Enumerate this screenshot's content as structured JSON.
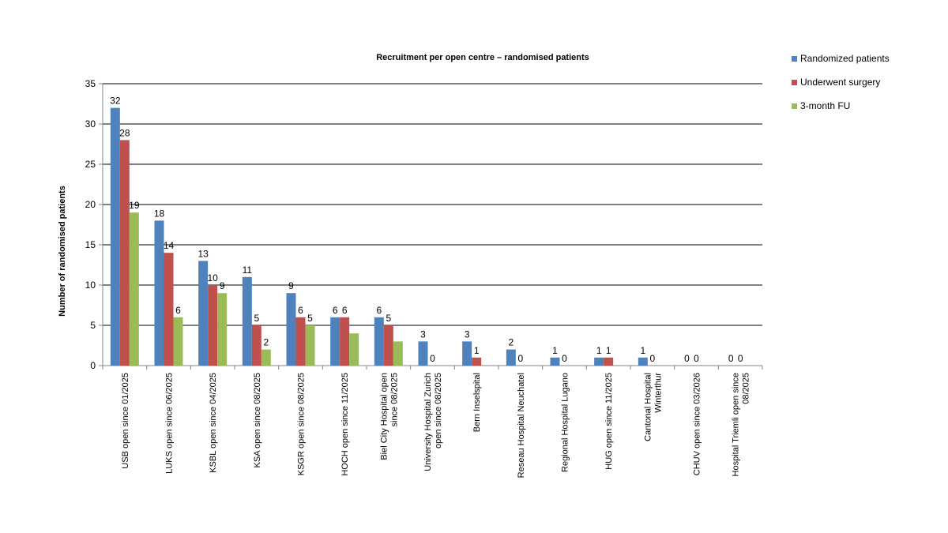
{
  "chart_data": {
    "type": "bar",
    "title": "Recruitment per open centre – randomised patients",
    "xlabel": "",
    "ylabel": "Number of randomised patients",
    "ylim": [
      0,
      35
    ],
    "yticks": [
      0,
      5,
      10,
      15,
      20,
      25,
      30,
      35
    ],
    "grid": true,
    "legend_position": "top-right",
    "categories": [
      [
        "USB open since 01/2025"
      ],
      [
        "LUKS open since 06/2025"
      ],
      [
        "KSBL open since 04/2025"
      ],
      [
        "KSA open since 08/2025"
      ],
      [
        "KSGR open since 08/2025"
      ],
      [
        "HOCH open since 11/2025"
      ],
      [
        "Biel City Hospital open",
        "since 08/2025"
      ],
      [
        "University Hospital Zurich",
        "open since 08/2025"
      ],
      [
        "Bern Inselspital"
      ],
      [
        "Reseau Hospital Neuchatel"
      ],
      [
        "Regional Hospital Lugano"
      ],
      [
        "HUG open since 11/2025"
      ],
      [
        "Cantonal Hospital",
        "Winterthur"
      ],
      [
        "CHUV open since 03/2026"
      ],
      [
        "Hospital Triemli open since",
        "08/2025"
      ]
    ],
    "series": [
      {
        "name": "Randomized patients",
        "color": "#4f81bd",
        "values": [
          32,
          18,
          13,
          11,
          9,
          6,
          6,
          3,
          3,
          2,
          1,
          1,
          1,
          0,
          0
        ],
        "labels": [
          "32",
          "18",
          "13",
          "11",
          "9",
          "6",
          "6",
          "3",
          "3",
          "2",
          "1",
          "1",
          "1",
          "0",
          "0"
        ]
      },
      {
        "name": "Underwent surgery",
        "color": "#c0504d",
        "values": [
          28,
          14,
          10,
          5,
          6,
          6,
          5,
          0,
          1,
          0,
          0,
          1,
          0,
          0,
          0
        ],
        "labels": [
          "28",
          "14",
          "10",
          "5",
          "6",
          "6",
          "5",
          "0",
          "1",
          "0",
          "0",
          "1",
          "0",
          "0",
          "0"
        ]
      },
      {
        "name": "3-month FU",
        "color": "#9bbb59",
        "values": [
          19,
          6,
          9,
          2,
          5,
          4,
          3,
          0,
          0,
          0,
          0,
          0,
          0,
          0,
          0
        ],
        "labels": [
          "19",
          "6",
          "9",
          "2",
          "5",
          "",
          "",
          "",
          "",
          "",
          "",
          "",
          "",
          "",
          ""
        ]
      }
    ]
  }
}
